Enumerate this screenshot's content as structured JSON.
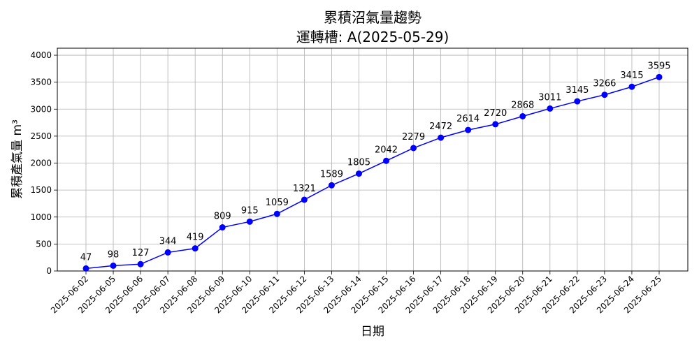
{
  "chart_data": {
    "type": "line",
    "title": "累積沼氣量趨勢",
    "subtitle": "運轉槽: A(2025-05-29)",
    "xlabel": "日期",
    "ylabel": "累積產氣量 m³",
    "x": [
      "2025-06-02",
      "2025-06-05",
      "2025-06-06",
      "2025-06-07",
      "2025-06-08",
      "2025-06-09",
      "2025-06-10",
      "2025-06-11",
      "2025-06-12",
      "2025-06-13",
      "2025-06-14",
      "2025-06-15",
      "2025-06-16",
      "2025-06-17",
      "2025-06-18",
      "2025-06-19",
      "2025-06-20",
      "2025-06-21",
      "2025-06-22",
      "2025-06-23",
      "2025-06-24",
      "2025-06-25"
    ],
    "series": [
      {
        "values": [
          47,
          98,
          127,
          344,
          419,
          809,
          915,
          1059,
          1321,
          1589,
          1805,
          2042,
          2279,
          2472,
          2614,
          2720,
          2868,
          3011,
          3145,
          3266,
          3415,
          3595
        ]
      }
    ],
    "data_labels": [
      "47",
      "98",
      "127",
      "344",
      "419",
      "809",
      "915",
      "1059",
      "1321",
      "1589",
      "1805",
      "2042",
      "2279",
      "2472",
      "2614",
      "2720",
      "2868",
      "3011",
      "3145",
      "3266",
      "3415",
      "3595"
    ],
    "ylim": [
      0,
      4130
    ],
    "yticks": [
      0,
      500,
      1000,
      1500,
      2000,
      2500,
      3000,
      3500,
      4000
    ],
    "grid": true,
    "line_color": "#0000ff",
    "marker_color": "#0000ff"
  }
}
